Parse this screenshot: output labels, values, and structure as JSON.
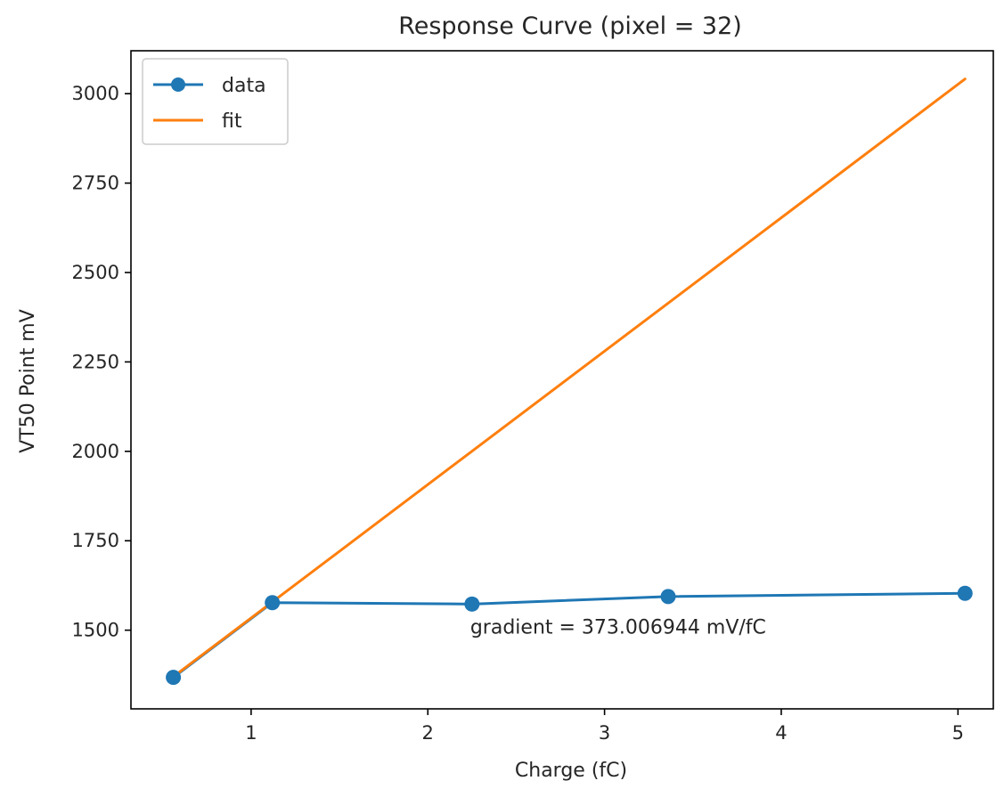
{
  "chart_data": {
    "type": "line",
    "title": "Response Curve (pixel = 32)",
    "xlabel": "Charge (fC)",
    "ylabel": "VT50 Point mV",
    "xlim": [
      0.32,
      5.2
    ],
    "ylim": [
      1280,
      3120
    ],
    "xticks": [
      1,
      2,
      3,
      4,
      5
    ],
    "yticks": [
      1500,
      1750,
      2000,
      2250,
      2500,
      2750,
      3000
    ],
    "grid": false,
    "legend_position": "top-left",
    "series": [
      {
        "name": "data",
        "kind": "line-marker",
        "color": "#1f77b4",
        "x": [
          0.56,
          1.12,
          2.25,
          3.36,
          5.04
        ],
        "y": [
          1368,
          1577,
          1573,
          1594,
          1603
        ]
      },
      {
        "name": "fit",
        "kind": "line",
        "color": "#ff7f0e",
        "x": [
          0.56,
          5.04
        ],
        "y": [
          1370,
          3041
        ]
      }
    ],
    "annotations": [
      {
        "text": "gradient = 373.006944 mV/fC",
        "x": 2.24,
        "y": 1500
      }
    ]
  }
}
